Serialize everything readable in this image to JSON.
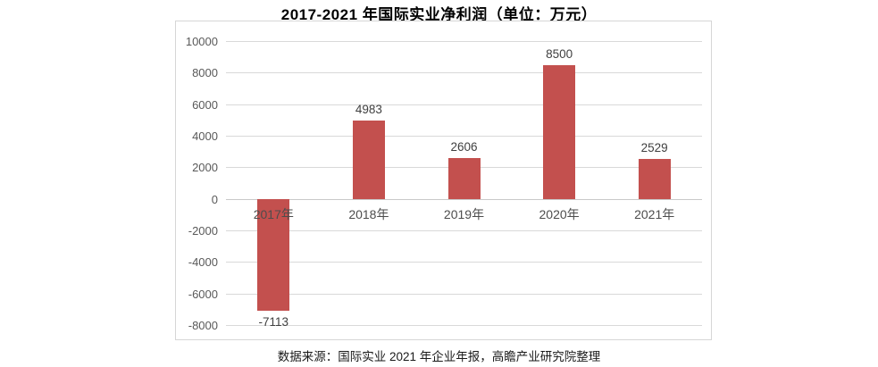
{
  "title": "2017-2021 年国际实业净利润（单位：万元）",
  "footer": "数据来源：国际实业 2021 年企业年报，高瞻产业研究院整理",
  "colors": {
    "bar": "#c3504e",
    "gridline": "#d9d9d9",
    "frame_border": "#d6d6d6",
    "axis_text": "#595959",
    "value_text": "#404040",
    "title_text": "#000000",
    "background": "#ffffff"
  },
  "chart_data": {
    "type": "bar",
    "title": "2017-2021 年国际实业净利润（单位：万元）",
    "categories": [
      "2017年",
      "2018年",
      "2019年",
      "2020年",
      "2021年"
    ],
    "values": [
      -7113,
      4983,
      2606,
      8500,
      2529
    ],
    "value_labels": [
      "-7113",
      "4983",
      "2606",
      "8500",
      "2529"
    ],
    "xlabel": "",
    "ylabel": "",
    "ylim": [
      -8000,
      10000
    ],
    "ytick_step": 2000,
    "yticks": [
      10000,
      8000,
      6000,
      4000,
      2000,
      0,
      -2000,
      -4000,
      -6000,
      -8000
    ],
    "grid": "horizontal",
    "legend": "none",
    "series_color": "#c3504e"
  }
}
